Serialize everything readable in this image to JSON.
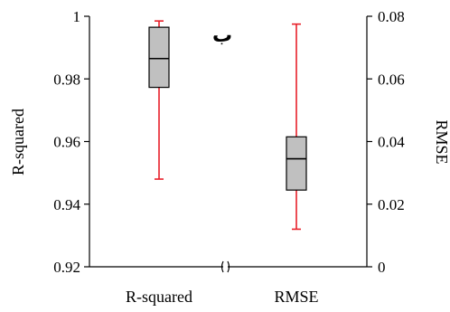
{
  "chart_data": {
    "type": "boxplot",
    "panel_label": "ب",
    "categories": [
      "R-squared",
      "RMSE"
    ],
    "left_axis": {
      "title": "R-squared",
      "ylim": [
        0.92,
        1.0
      ],
      "ticks": [
        0.92,
        0.94,
        0.96,
        0.98,
        1.0
      ],
      "tick_labels": [
        "0.92",
        "0.94",
        "0.96",
        "0.98",
        "1"
      ]
    },
    "right_axis": {
      "title": "RMSE",
      "ylim": [
        0,
        0.08
      ],
      "ticks": [
        0,
        0.02,
        0.04,
        0.06,
        0.08
      ],
      "tick_labels": [
        "0",
        "0.02",
        "0.04",
        "0.06",
        "0.08"
      ]
    },
    "boxes": [
      {
        "name": "R-squared",
        "axis": "left",
        "min": 0.948,
        "q1": 0.9773,
        "median": 0.9865,
        "q3": 0.9965,
        "max": 0.9985
      },
      {
        "name": "RMSE",
        "axis": "right",
        "min": 0.012,
        "q1": 0.0245,
        "median": 0.0345,
        "q3": 0.0415,
        "max": 0.0775
      }
    ],
    "colors": {
      "box_fill": "#c0c0c0",
      "whisker": "#e8202a",
      "outline": "#000000"
    },
    "grid": false,
    "legend": "none"
  }
}
